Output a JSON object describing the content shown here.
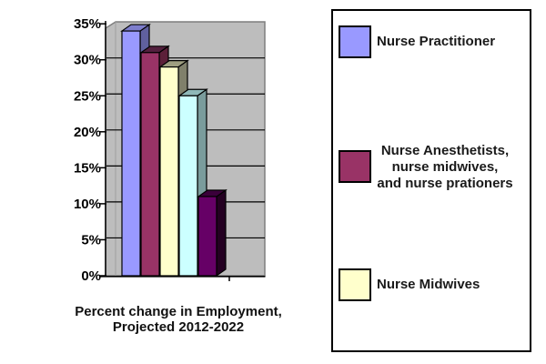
{
  "caption": {
    "line1": "Percent change in Employment,",
    "line2": "Projected 2012-2022"
  },
  "chart_data": {
    "type": "bar",
    "style": "3d",
    "title": "Percent change in Employment, Projected 2012-2022",
    "categories": [
      "Nurse Practitioner",
      "Nurse Anesthetists, nurse midwives, and nurse prationers",
      "Nurse Midwives",
      "",
      ""
    ],
    "values": [
      34,
      31,
      29,
      25,
      11
    ],
    "unit": "%",
    "ylim": [
      0,
      35
    ],
    "ytick_step": 5,
    "y_tick_labels": [
      "35%",
      "30%",
      "25%",
      "20%",
      "15%",
      "10%",
      "5%",
      "0%"
    ],
    "grid": true,
    "legend_position": "right",
    "wall_color": "#bdbdbd",
    "bar_faces": [
      {
        "front": "#9999FF",
        "top": "#7d7dcc",
        "side": "#60609e"
      },
      {
        "front": "#993366",
        "top": "#53203e",
        "side": "#5c2039"
      },
      {
        "front": "#FFFFCC",
        "top": "#9e9e80",
        "side": "#80806b"
      },
      {
        "front": "#CCFFFF",
        "top": "#8fb8b8",
        "side": "#7a9c9c"
      },
      {
        "front": "#660066",
        "top": "#3a003a",
        "side": "#240022"
      }
    ]
  },
  "legend": {
    "items": [
      {
        "label": "Nurse Practitioner",
        "color": "#9999FF"
      },
      {
        "label": "Nurse Anesthetists,\nnurse midwives,\nand nurse prationers",
        "color": "#993366"
      },
      {
        "label": "Nurse Midwives",
        "color": "#FFFFCC"
      }
    ]
  }
}
